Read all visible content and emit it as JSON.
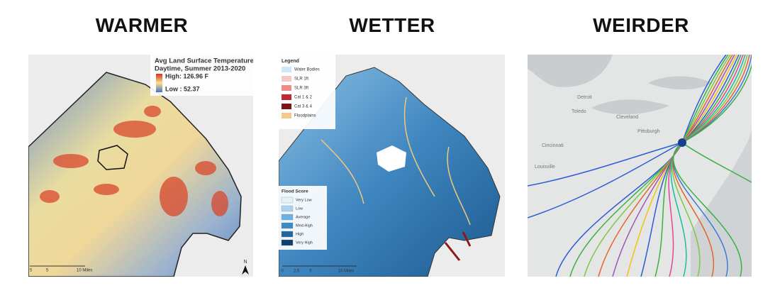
{
  "panels": [
    {
      "heading": "WARMER",
      "legend_title": [
        "Avg Land Surface Temperature",
        "Daytime, Summer 2013-2020"
      ],
      "legend_items": [
        "High: 126.96 F",
        "Low : 52.37"
      ],
      "scale_labels": [
        "5",
        "5",
        "10 Miles"
      ],
      "north": "N"
    },
    {
      "heading": "WETTER",
      "legend_title": [
        "Legend"
      ],
      "legend_items": [
        "Water Bodies",
        "SLR 1ft",
        "SLR 3ft",
        "Cat 1 & 2",
        "Cat 3 & 4",
        "Floodplains"
      ],
      "score_title": "Flood Score",
      "score_items": [
        "Very Low",
        "Low",
        "Average",
        "Med-High",
        "High",
        "Very High"
      ],
      "scale_labels": [
        "0",
        "2.5",
        "5",
        "10 Miles"
      ]
    },
    {
      "heading": "WEIRDER",
      "place_labels": [
        "Detroit",
        "Toledo",
        "Cleveland",
        "Pittsburgh",
        "Cincinnati",
        "Louisville"
      ]
    }
  ]
}
